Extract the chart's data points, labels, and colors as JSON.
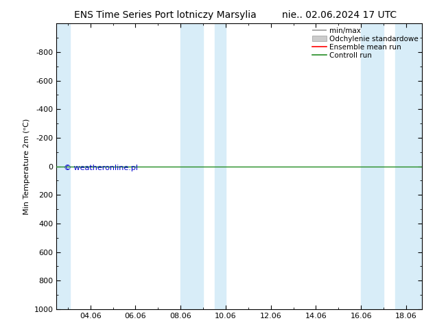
{
  "title_left": "ENS Time Series Port lotniczy Marsylia",
  "title_right": "nie.. 02.06.2024 17 UTC",
  "ylabel": "Min Temperature 2m (ᵒC)",
  "watermark": "© weatheronline.pl",
  "watermark_color": "#0000cc",
  "ylim_top": -1000,
  "ylim_bottom": 1000,
  "yticks": [
    -800,
    -600,
    -400,
    -200,
    0,
    200,
    400,
    600,
    800,
    1000
  ],
  "xlim_start": 2.5,
  "xlim_end": 18.7,
  "xtick_labels": [
    "04.06",
    "06.06",
    "08.06",
    "10.06",
    "12.06",
    "14.06",
    "16.06",
    "18.06"
  ],
  "xtick_positions": [
    4,
    6,
    8,
    10,
    12,
    14,
    16,
    18
  ],
  "shaded_regions": [
    [
      2.5,
      3.1
    ],
    [
      8.0,
      9.0
    ],
    [
      9.5,
      10.0
    ],
    [
      16.0,
      17.0
    ],
    [
      17.5,
      18.7
    ]
  ],
  "shaded_color": "#d8edf8",
  "control_run_y": 0,
  "control_run_color": "#228B22",
  "ensemble_mean_color": "#ff0000",
  "minmax_color": "#999999",
  "std_color": "#cccccc",
  "background_color": "#ffffff",
  "legend_labels": [
    "min/max",
    "Odchylenie standardowe",
    "Ensemble mean run",
    "Controll run"
  ],
  "legend_colors": [
    "#999999",
    "#cccccc",
    "#ff0000",
    "#228B22"
  ]
}
